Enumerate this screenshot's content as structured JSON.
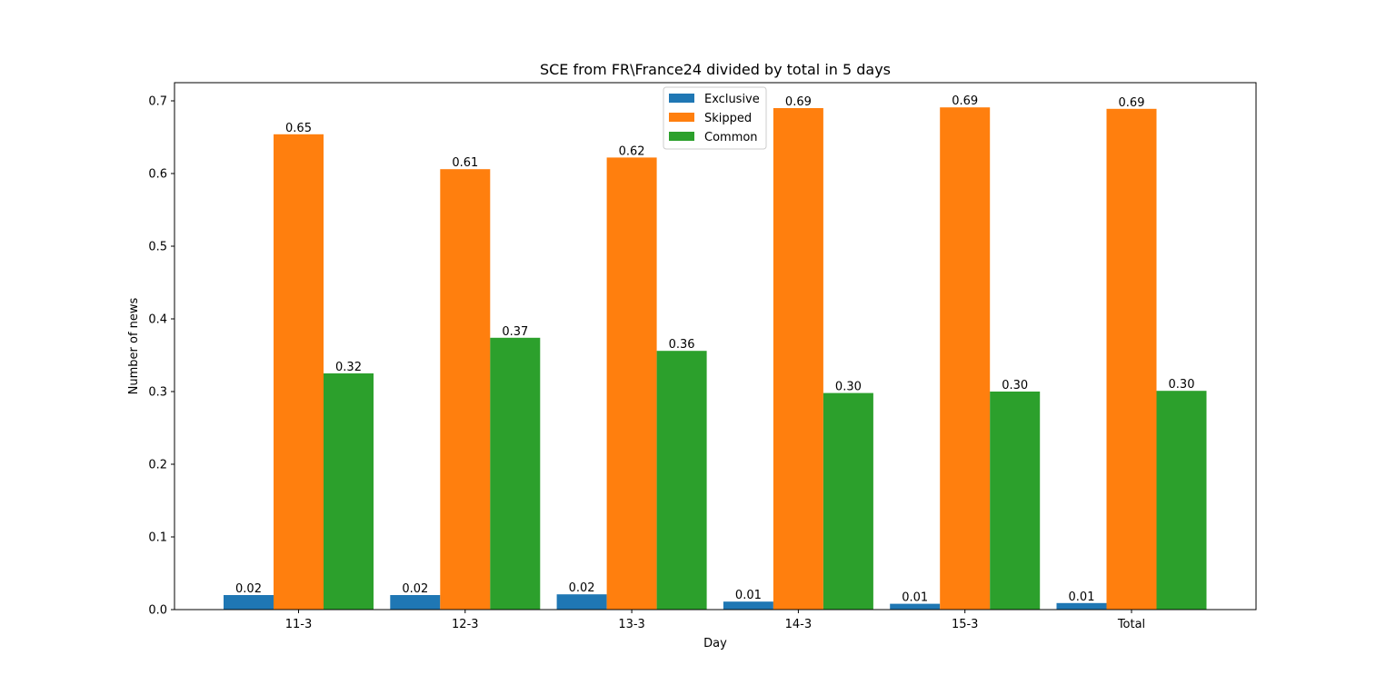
{
  "chart_data": {
    "type": "bar",
    "title": "SCE from FR\\France24 divided by total in 5 days",
    "xlabel": "Day",
    "ylabel": "Number of news",
    "categories": [
      "11-3",
      "12-3",
      "13-3",
      "14-3",
      "15-3",
      "Total"
    ],
    "ylim": [
      0,
      0.725
    ],
    "yticks": [
      0.0,
      0.1,
      0.2,
      0.3,
      0.4,
      0.5,
      0.6,
      0.7
    ],
    "ytick_labels": [
      "0.0",
      "0.1",
      "0.2",
      "0.3",
      "0.4",
      "0.5",
      "0.6",
      "0.7"
    ],
    "grid": false,
    "legend_position": "upper center",
    "series": [
      {
        "name": "Exclusive",
        "color": "#1f77b4",
        "values": [
          0.02,
          0.02,
          0.021,
          0.011,
          0.008,
          0.009
        ],
        "labels": [
          "0.02",
          "0.02",
          "0.02",
          "0.01",
          "0.01",
          "0.01"
        ]
      },
      {
        "name": "Skipped",
        "color": "#ff7f0e",
        "values": [
          0.654,
          0.606,
          0.622,
          0.69,
          0.691,
          0.689
        ],
        "labels": [
          "0.65",
          "0.61",
          "0.62",
          "0.69",
          "0.69",
          "0.69"
        ]
      },
      {
        "name": "Common",
        "color": "#2ca02c",
        "values": [
          0.325,
          0.374,
          0.356,
          0.298,
          0.3,
          0.301
        ],
        "labels": [
          "0.32",
          "0.37",
          "0.36",
          "0.30",
          "0.30",
          "0.30"
        ]
      }
    ]
  }
}
